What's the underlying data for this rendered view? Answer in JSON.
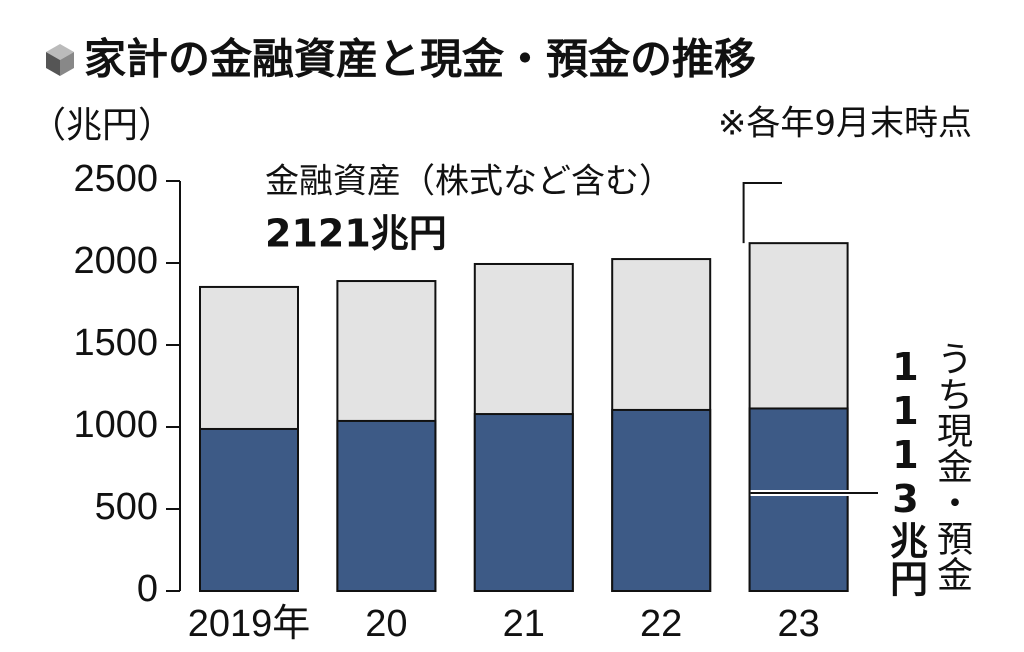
{
  "chart_data": {
    "type": "overlap_bar",
    "title": "家計の金融資産と現金・預金の推移",
    "y_label": "（兆円）",
    "note": "※各年9月末時点",
    "categories": [
      "2019年",
      "20",
      "21",
      "22",
      "23"
    ],
    "series": [
      {
        "name": "金融資産（株式など含む）",
        "color": "#e3e3e3",
        "values": [
          1854,
          1890,
          1994,
          2024,
          2121
        ],
        "value_labels": [
          null,
          null,
          null,
          null,
          "2121兆円"
        ]
      },
      {
        "name": "うち現金・預金",
        "color": "#3d5a86",
        "values": [
          988,
          1037,
          1079,
          1104,
          1113
        ],
        "value_labels": [
          null,
          null,
          null,
          null,
          "1113兆円"
        ]
      }
    ],
    "ylim": [
      0,
      2500
    ],
    "yticks": [
      0,
      500,
      1000,
      1500,
      2000,
      2500
    ]
  }
}
